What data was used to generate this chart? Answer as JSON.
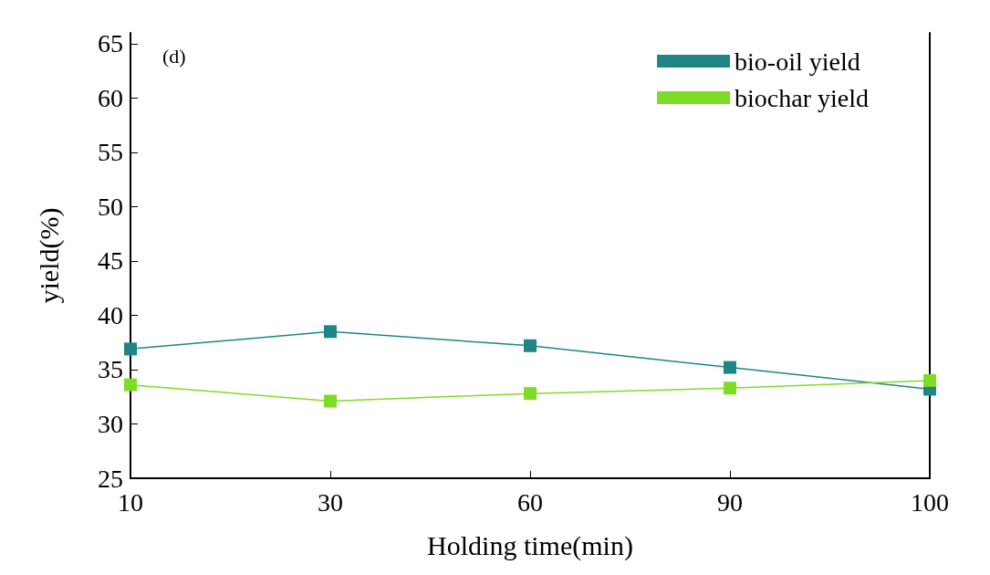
{
  "chart_data": {
    "type": "line",
    "xlabel": "Holding time(min)",
    "ylabel": "yield(%)",
    "annotations": [
      "(d)"
    ],
    "categories": [
      "10",
      "30",
      "60",
      "90",
      "100"
    ],
    "series": [
      {
        "name": "bio-oil yield",
        "color": "#1f8585",
        "values": [
          36.9,
          38.5,
          37.2,
          35.2,
          33.2
        ]
      },
      {
        "name": "biochar yield",
        "color": "#7fdc26",
        "values": [
          33.6,
          32.1,
          32.8,
          33.3,
          34.0
        ]
      }
    ],
    "ylim": [
      25,
      66
    ],
    "yticks": [
      25,
      30,
      35,
      40,
      45,
      50,
      55,
      60,
      65
    ],
    "grid": false,
    "legend": "top right",
    "marker": "square",
    "line_style": "solid"
  }
}
